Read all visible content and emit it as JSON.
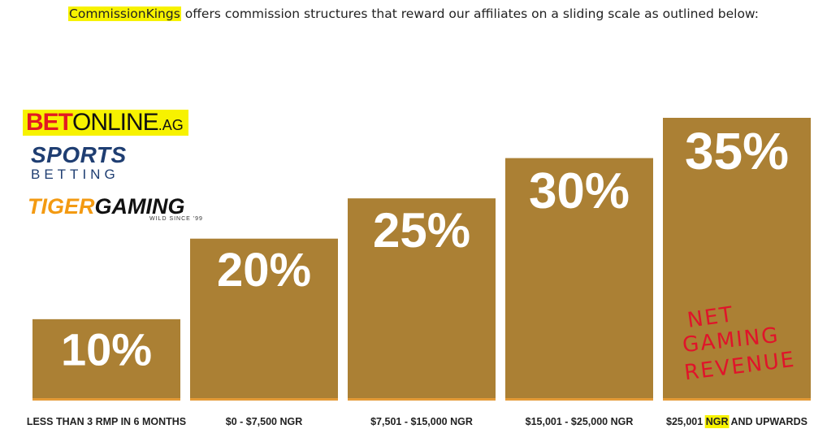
{
  "intro": {
    "brand": "CommissionKings",
    "text": " offers commission structures that reward our affiliates on a sliding scale as outlined below:"
  },
  "logos": {
    "betonline": {
      "bet": "BET",
      "online": "ONLINE",
      "ag": ".AG"
    },
    "sportsbetting": {
      "line1": "SPORTS",
      "line2": "BETTING"
    },
    "tigergaming": {
      "tiger": "TIGER",
      "gaming": "GAMING",
      "tagline": "WILD SINCE '99"
    }
  },
  "colors": {
    "bar": "#ab8034",
    "bar_bottom": "#e49a36",
    "highlight": "#f7f200",
    "scribble": "#e0142a"
  },
  "chart_data": {
    "type": "bar",
    "categories": [
      "LESS THAN 3 RMP IN 6 MONTHS",
      "$0 - $7,500 NGR",
      "$7,501 - $15,000 NGR",
      "$15,001 - $25,000 NGR",
      "$25,001 NGR AND UPWARDS"
    ],
    "values": [
      10,
      20,
      25,
      30,
      35
    ],
    "data_labels": [
      "10%",
      "20%",
      "25%",
      "30%",
      "35%"
    ],
    "highlighted_word": "NGR",
    "annotation": {
      "line1": "NET",
      "line2": "GAMING",
      "line3": "REVENUE"
    },
    "title": "",
    "xlabel": "",
    "ylabel": "",
    "ylim": [
      0,
      35
    ],
    "grid": false
  }
}
